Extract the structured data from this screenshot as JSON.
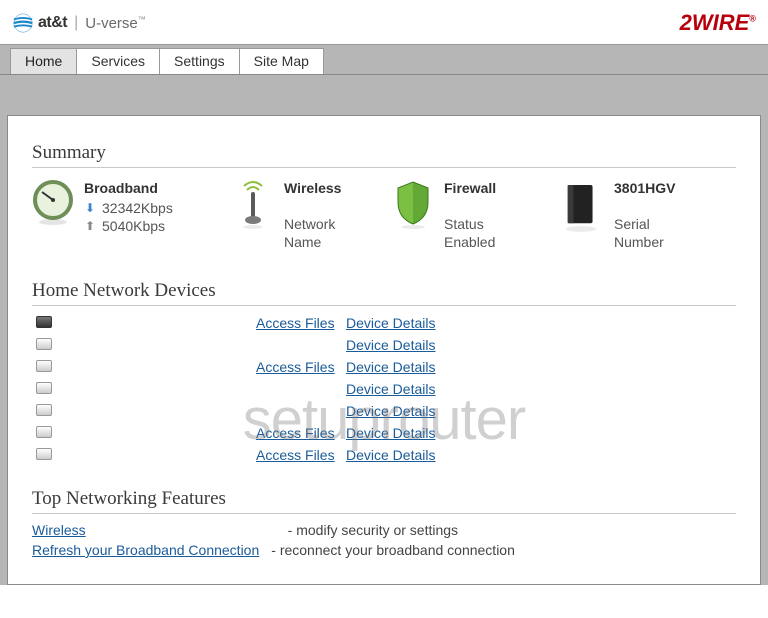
{
  "branding": {
    "att_text": "at&t",
    "uverse_text": "U-verse",
    "right_brand": "2WIRE"
  },
  "tabs": {
    "items": [
      {
        "label": "Home",
        "active": true
      },
      {
        "label": "Services",
        "active": false
      },
      {
        "label": "Settings",
        "active": false
      },
      {
        "label": "Site Map",
        "active": false
      }
    ]
  },
  "sections": {
    "summary_title": "Summary",
    "devices_title": "Home Network Devices",
    "features_title": "Top Networking Features"
  },
  "summary": {
    "broadband": {
      "title": "Broadband",
      "down": "32342Kbps",
      "up": "5040Kbps",
      "icon_colors": {
        "ring": "#6f8f59",
        "inner": "#e9f2dc",
        "needle": "#333"
      }
    },
    "wireless": {
      "title": "Wireless",
      "line1": "Network",
      "line2": "Name",
      "icon_colors": {
        "antenna": "#5a5a5a",
        "wave": "#8fbf3f"
      }
    },
    "firewall": {
      "title": "Firewall",
      "line1": "Status",
      "line2": "Enabled",
      "icon_colors": {
        "shield_dark": "#3a7a1e",
        "shield_light": "#7bc043"
      }
    },
    "device": {
      "title": "3801HGV",
      "line1": "Serial",
      "line2": "Number",
      "icon_color": "#222"
    }
  },
  "devices": [
    {
      "dark": true,
      "access": "Access Files",
      "details": "Device Details"
    },
    {
      "dark": false,
      "access": "",
      "details": "Device Details"
    },
    {
      "dark": false,
      "access": "Access Files",
      "details": "Device Details"
    },
    {
      "dark": false,
      "access": "",
      "details": "Device Details"
    },
    {
      "dark": false,
      "access": "",
      "details": "Device Details"
    },
    {
      "dark": false,
      "access": "Access Files",
      "details": "Device Details"
    },
    {
      "dark": false,
      "access": "Access Files",
      "details": "Device Details"
    }
  ],
  "features": [
    {
      "label": "Wireless",
      "desc": "- modify security or settings"
    },
    {
      "label": "Refresh your Broadband Connection",
      "desc": "- reconnect your broadband connection"
    }
  ],
  "watermark": "setuprouter",
  "colors": {
    "link": "#1a5b9a",
    "nav_bg": "#b6b6b6",
    "brand_red": "#b8000d"
  }
}
